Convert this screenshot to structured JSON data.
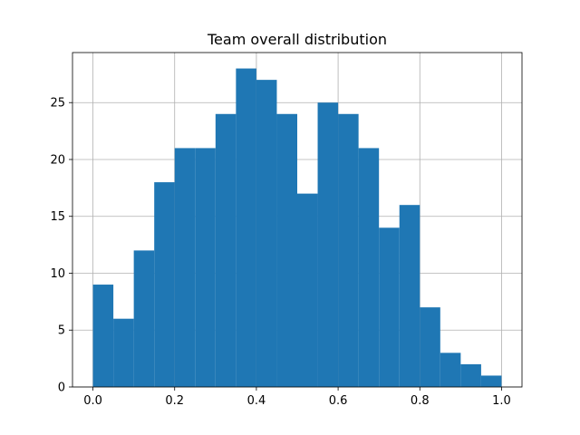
{
  "chart_data": {
    "type": "bar",
    "title": "Team overall distribution",
    "xlabel": "",
    "ylabel": "",
    "bin_width": 0.05,
    "bins": [
      0,
      0.05,
      0.1,
      0.15,
      0.2,
      0.25,
      0.3,
      0.35,
      0.4,
      0.45,
      0.5,
      0.55,
      0.6,
      0.65,
      0.7,
      0.75,
      0.8,
      0.85,
      0.9,
      0.95
    ],
    "values": [
      9,
      6,
      12,
      18,
      21,
      21,
      24,
      28,
      27,
      24,
      17,
      25,
      24,
      21,
      14,
      16,
      7,
      3,
      2,
      1
    ],
    "xlim": [
      -0.05,
      1.05
    ],
    "ylim": [
      0,
      29.4
    ],
    "xticks": [
      0.0,
      0.2,
      0.4,
      0.6,
      0.8,
      1.0
    ],
    "xtick_labels": [
      "0.0",
      "0.2",
      "0.4",
      "0.6",
      "0.8",
      "1.0"
    ],
    "yticks": [
      0,
      5,
      10,
      15,
      20,
      25
    ],
    "ytick_labels": [
      "0",
      "5",
      "10",
      "15",
      "20",
      "25"
    ],
    "grid": true,
    "colors": {
      "bar": "#1f77b4",
      "grid": "#b0b0b0",
      "axis": "#000000"
    }
  }
}
